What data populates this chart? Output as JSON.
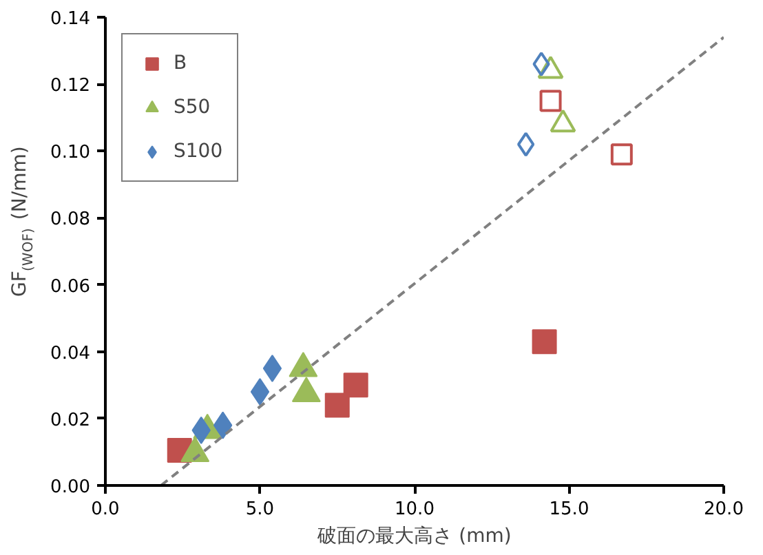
{
  "chart_data": {
    "type": "scatter",
    "xlabel": "破面の最大高さ (mm)",
    "ylabel": "GF$_{(WOF)}$ (N/mm)",
    "xlim": [
      0,
      20
    ],
    "ylim": [
      0,
      0.14
    ],
    "xticks": [
      {
        "value": 0,
        "label": "0.0"
      },
      {
        "value": 5,
        "label": "5.0"
      },
      {
        "value": 10,
        "label": "10.0"
      },
      {
        "value": 15,
        "label": "15.0"
      },
      {
        "value": 20,
        "label": "20.0"
      }
    ],
    "yticks": [
      {
        "value": 0,
        "label": "0.00"
      },
      {
        "value": 0.02,
        "label": "0.02"
      },
      {
        "value": 0.04,
        "label": "0.04"
      },
      {
        "value": 0.06,
        "label": "0.06"
      },
      {
        "value": 0.08,
        "label": "0.08"
      },
      {
        "value": 0.1,
        "label": "0.10"
      },
      {
        "value": 0.12,
        "label": "0.12"
      },
      {
        "value": 0.14,
        "label": "0.14"
      }
    ],
    "grid": false,
    "legend": "top left",
    "series": [
      {
        "name": "B",
        "color": "#c0504d",
        "marker": "square",
        "x": [
          2.4,
          7.5,
          8.1,
          14.2
        ],
        "values": [
          0.0105,
          0.024,
          0.03,
          0.043
        ]
      },
      {
        "name": "S50",
        "color": "#9bbb59",
        "marker": "triangle",
        "x": [
          2.9,
          3.3,
          6.4,
          6.5
        ],
        "values": [
          0.0096,
          0.0165,
          0.035,
          0.0275
        ]
      },
      {
        "name": "S100",
        "color": "#4f81bd",
        "marker": "diamond",
        "x": [
          3.1,
          3.8,
          5.0,
          5.4
        ],
        "values": [
          0.0165,
          0.018,
          0.028,
          0.035
        ]
      },
      {
        "color": "#c0504d",
        "marker": "square",
        "x": [
          14.4,
          16.7
        ],
        "values": [
          0.115,
          0.099
        ]
      },
      {
        "color": "#9bbb59",
        "marker": "triangle",
        "x": [
          14.4,
          14.8
        ],
        "values": [
          0.124,
          0.108
        ]
      },
      {
        "color": "#4f81bd",
        "marker": "diamond",
        "x": [
          14.1,
          13.6
        ],
        "values": [
          0.126,
          0.102
        ]
      },
      {
        "type": "line",
        "color": "#808080",
        "line_style": "dashed",
        "marker": "none",
        "x": [
          1.8,
          20
        ],
        "values": [
          0,
          0.134
        ]
      }
    ]
  }
}
